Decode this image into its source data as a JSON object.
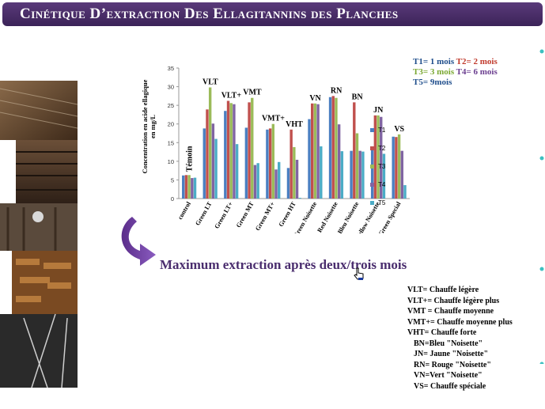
{
  "title": "Cinétique D’extraction Des Ellagitannins des Planches",
  "legend_top": {
    "lines": [
      [
        {
          "text": "T1= 1 mois ",
          "color": "#1f4e8c"
        },
        {
          "text": "T2= 2 mois",
          "color": "#c0392b"
        }
      ],
      [
        {
          "text": "T3= 3 mois ",
          "color": "#7aa832"
        },
        {
          "text": "T4= 6 mois",
          "color": "#6a3d8f"
        }
      ],
      [
        {
          "text": "T5= 9mois",
          "color": "#1f4e8c"
        }
      ]
    ]
  },
  "max_text": "Maximum extraction après deux/trois mois",
  "abbreviations": [
    {
      "text": "VLT= Chauffe légère",
      "indent": false
    },
    {
      "text": "VLT+= Chauffe légère plus",
      "indent": false
    },
    {
      "text": "VMT = Chauffe moyenne",
      "indent": false
    },
    {
      "text": "VMT+= Chauffe moyenne plus",
      "indent": false
    },
    {
      "text": "VHT= Chauffe forte",
      "indent": false
    },
    {
      "text": "BN=Bleu \"Noisette\"",
      "indent": true
    },
    {
      "text": "JN= Jaune \"Noisette\"",
      "indent": true
    },
    {
      "text": "RN= Rouge \"Noisette\"",
      "indent": true
    },
    {
      "text": "VN=Vert \"Noisette\"",
      "indent": true
    },
    {
      "text": "VS= Chauffe spéciale",
      "indent": true
    }
  ],
  "chart_data": {
    "type": "bar",
    "ylabel_lines": [
      "Concentration en acide ellagique",
      "en mg/L"
    ],
    "ylim": [
      0,
      35
    ],
    "yticks": [
      0,
      5,
      10,
      15,
      20,
      25,
      30,
      35
    ],
    "grid": false,
    "legend_position": "right",
    "categories": [
      "control",
      "Green LT",
      "Green LT+",
      "Green MT",
      "Green MT+",
      "Green HT",
      "Green Noisette",
      "Red Noisette",
      "Bleu Noisette",
      "Yellow Noisette",
      "Green Special"
    ],
    "group_labels": [
      "Témoin",
      "VLT",
      "VLT+",
      "VMT",
      "VMT+",
      "VHT",
      "VN",
      "RN",
      "BN",
      "JN",
      "VS"
    ],
    "series": [
      {
        "name": "T1",
        "color": "#4a7fc1",
        "values": [
          6.2,
          18.8,
          23.5,
          19.0,
          18.5,
          8.2,
          21.3,
          27.2,
          12.8,
          13.0,
          16.6
        ]
      },
      {
        "name": "T2",
        "color": "#c0504d",
        "values": [
          6.3,
          23.9,
          26.2,
          25.8,
          18.8,
          18.5,
          25.5,
          27.5,
          25.8,
          22.3,
          16.5
        ]
      },
      {
        "name": "T3",
        "color": "#9bbb59",
        "values": [
          6.3,
          29.8,
          25.6,
          27.0,
          20.0,
          13.8,
          25.5,
          27.0,
          17.5,
          22.3,
          17.2
        ]
      },
      {
        "name": "T4",
        "color": "#8064a2",
        "values": [
          5.5,
          20.1,
          25.3,
          9.0,
          7.8,
          10.4,
          25.3,
          19.9,
          12.8,
          21.9,
          12.8
        ]
      },
      {
        "name": "T5",
        "color": "#4bacc6",
        "values": [
          5.6,
          16.0,
          14.6,
          9.5,
          9.8,
          0.2,
          14.0,
          12.7,
          12.6,
          12.0,
          3.6
        ]
      }
    ]
  }
}
